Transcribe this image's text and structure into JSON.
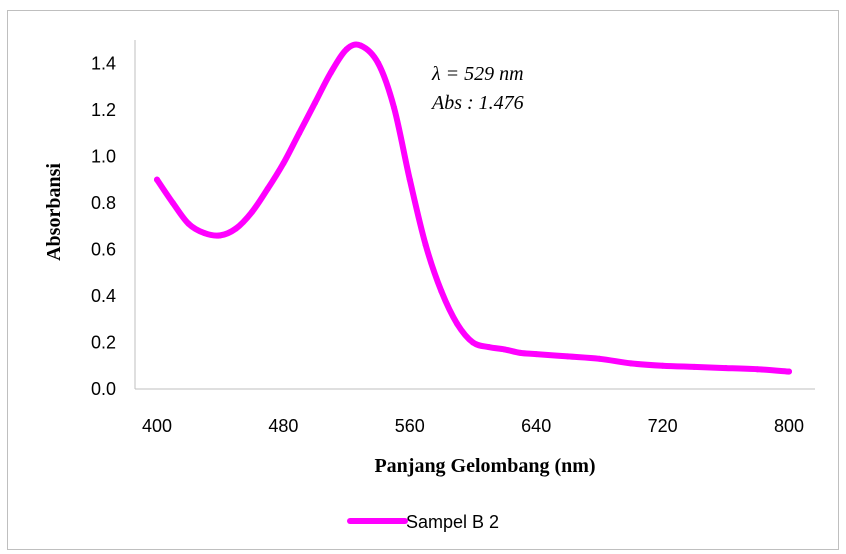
{
  "chart_data": {
    "type": "line",
    "xlabel": "Panjang Gelombang (nm)",
    "ylabel": "Absorbansi",
    "xlim": [
      400,
      800
    ],
    "ylim": [
      0,
      1.4
    ],
    "x_ticks": [
      "400",
      "480",
      "560",
      "640",
      "720",
      "800"
    ],
    "y_ticks": [
      "0.0",
      "0.2",
      "0.4",
      "0.6",
      "0.8",
      "1.0",
      "1.2",
      "1.4"
    ],
    "grid": false,
    "legend_position": "bottom",
    "annotations": [
      "λ = 529 nm",
      "Abs : 1.476"
    ],
    "series": [
      {
        "name": "Sampel B 2",
        "color": "#ff00ff",
        "x": [
          400,
          410,
          420,
          430,
          440,
          450,
          460,
          470,
          480,
          490,
          500,
          510,
          520,
          529,
          540,
          550,
          560,
          570,
          580,
          590,
          600,
          610,
          620,
          630,
          640,
          660,
          680,
          700,
          720,
          740,
          760,
          780,
          800
        ],
        "y": [
          0.9,
          0.8,
          0.71,
          0.67,
          0.66,
          0.69,
          0.76,
          0.86,
          0.97,
          1.1,
          1.23,
          1.36,
          1.46,
          1.476,
          1.4,
          1.21,
          0.9,
          0.62,
          0.42,
          0.28,
          0.2,
          0.18,
          0.17,
          0.155,
          0.15,
          0.14,
          0.13,
          0.11,
          0.1,
          0.095,
          0.09,
          0.085,
          0.075
        ]
      }
    ]
  }
}
